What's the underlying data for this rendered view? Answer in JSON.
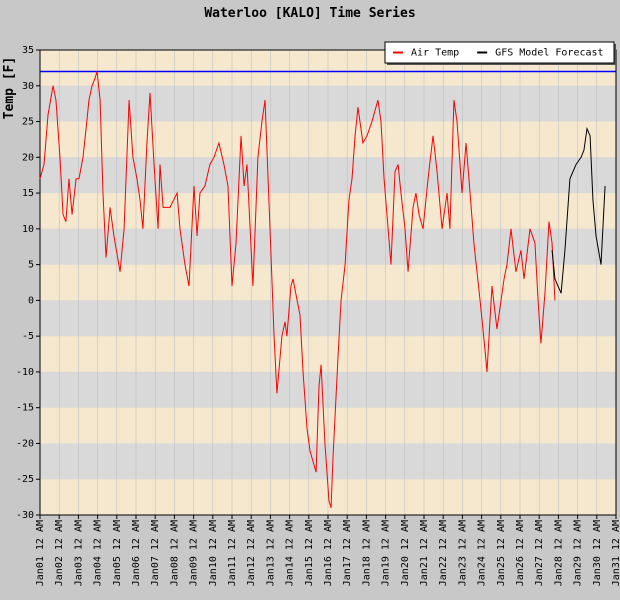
{
  "chart_data": {
    "type": "line",
    "title": "Waterloo [KALO] Time Series",
    "y_label": "Temp [F]",
    "xlim": [
      0,
      30
    ],
    "xticks": [
      {
        "value": 0,
        "label": "Jan01 12 AM"
      },
      {
        "value": 1,
        "label": "Jan02 12 AM"
      },
      {
        "value": 2,
        "label": "Jan03 12 AM"
      },
      {
        "value": 3,
        "label": "Jan04 12 AM"
      },
      {
        "value": 4,
        "label": "Jan05 12 AM"
      },
      {
        "value": 5,
        "label": "Jan06 12 AM"
      },
      {
        "value": 6,
        "label": "Jan07 12 AM"
      },
      {
        "value": 7,
        "label": "Jan08 12 AM"
      },
      {
        "value": 8,
        "label": "Jan09 12 AM"
      },
      {
        "value": 9,
        "label": "Jan10 12 AM"
      },
      {
        "value": 10,
        "label": "Jan11 12 AM"
      },
      {
        "value": 11,
        "label": "Jan12 12 AM"
      },
      {
        "value": 12,
        "label": "Jan13 12 AM"
      },
      {
        "value": 13,
        "label": "Jan14 12 AM"
      },
      {
        "value": 14,
        "label": "Jan15 12 AM"
      },
      {
        "value": 15,
        "label": "Jan16 12 AM"
      },
      {
        "value": 16,
        "label": "Jan17 12 AM"
      },
      {
        "value": 17,
        "label": "Jan18 12 AM"
      },
      {
        "value": 18,
        "label": "Jan19 12 AM"
      },
      {
        "value": 19,
        "label": "Jan20 12 AM"
      },
      {
        "value": 20,
        "label": "Jan21 12 AM"
      },
      {
        "value": 21,
        "label": "Jan22 12 AM"
      },
      {
        "value": 22,
        "label": "Jan23 12 AM"
      },
      {
        "value": 23,
        "label": "Jan24 12 AM"
      },
      {
        "value": 24,
        "label": "Jan25 12 AM"
      },
      {
        "value": 25,
        "label": "Jan26 12 AM"
      },
      {
        "value": 26,
        "label": "Jan27 12 AM"
      },
      {
        "value": 27,
        "label": "Jan28 12 AM"
      },
      {
        "value": 28,
        "label": "Jan29 12 AM"
      },
      {
        "value": 29,
        "label": "Jan30 12 AM"
      },
      {
        "value": 30,
        "label": "Jan31 12 AM"
      }
    ],
    "ylim": [
      -30,
      35
    ],
    "yticks": [
      35,
      30,
      25,
      20,
      15,
      10,
      5,
      0,
      -5,
      -10,
      -15,
      -20,
      -25,
      -30
    ],
    "band_colors": [
      "#f5e8cf",
      "#d9d9d9"
    ],
    "reference_line": {
      "value": 32,
      "color": "#0000ff"
    },
    "legend": "top-right",
    "series": [
      {
        "name": "Air Temp",
        "color": "#ff0000",
        "x": [
          0,
          0.21,
          0.42,
          0.68,
          0.83,
          1.04,
          1.2,
          1.35,
          1.51,
          1.67,
          1.88,
          2.03,
          2.24,
          2.4,
          2.55,
          2.71,
          2.86,
          2.97,
          3.13,
          3.28,
          3.44,
          3.65,
          3.85,
          4.17,
          4.38,
          4.64,
          4.84,
          5.05,
          5.21,
          5.36,
          5.57,
          5.73,
          5.94,
          6.15,
          6.25,
          6.41,
          6.77,
          7.14,
          7.29,
          7.55,
          7.76,
          8.02,
          8.18,
          8.33,
          8.59,
          8.85,
          9.06,
          9.32,
          9.58,
          9.79,
          10,
          10.21,
          10.47,
          10.63,
          10.78,
          11.09,
          11.35,
          11.56,
          11.72,
          11.98,
          12.19,
          12.34,
          12.6,
          12.76,
          12.86,
          13.07,
          13.18,
          13.39,
          13.54,
          13.7,
          13.91,
          14.06,
          14.27,
          14.38,
          14.53,
          14.64,
          14.84,
          15.05,
          15.16,
          15.26,
          15.52,
          15.68,
          15.89,
          16.09,
          16.25,
          16.41,
          16.56,
          16.82,
          17.03,
          17.29,
          17.6,
          17.76,
          17.92,
          18.13,
          18.28,
          18.49,
          18.65,
          18.8,
          19.01,
          19.17,
          19.43,
          19.58,
          19.74,
          19.95,
          20.21,
          20.47,
          20.68,
          20.94,
          21.2,
          21.35,
          21.56,
          21.72,
          21.98,
          22.19,
          22.4,
          22.6,
          22.92,
          23.18,
          23.28,
          23.54,
          23.8,
          24.17,
          24.32,
          24.53,
          24.79,
          25.05,
          25.21,
          25.52,
          25.78,
          25.94,
          26.09,
          26.3,
          26.51,
          26.67,
          26.82
        ],
        "values": [
          17,
          19,
          26,
          30,
          28,
          20,
          12,
          11,
          17,
          12,
          17,
          17,
          20,
          24,
          28,
          30,
          31,
          32,
          28,
          15,
          6,
          13,
          9,
          4,
          10,
          28,
          20,
          17,
          14,
          10,
          22,
          29,
          19,
          10,
          19,
          13,
          13,
          15,
          10,
          5,
          2,
          16,
          9,
          15,
          16,
          19,
          20,
          22,
          19,
          16,
          2,
          8,
          23,
          16,
          19,
          2,
          20,
          25,
          28,
          10,
          -5,
          -13,
          -5,
          -3,
          -5,
          2,
          3,
          0,
          -2,
          -10,
          -18,
          -21,
          -23,
          -24,
          -12,
          -9,
          -20,
          -28,
          -29,
          -22,
          -8,
          0,
          5,
          14,
          17,
          23,
          27,
          22,
          23,
          25,
          28,
          25,
          17,
          10,
          5,
          18,
          19,
          15,
          10,
          4,
          13,
          15,
          12,
          10,
          17,
          23,
          18,
          10,
          15,
          10,
          28,
          25,
          15,
          22,
          15,
          8,
          0,
          -7,
          -10,
          2,
          -4,
          3,
          5,
          10,
          4,
          7,
          3,
          10,
          8,
          0,
          -6,
          1,
          11,
          8,
          0
        ]
      },
      {
        "name": "GFS Model Forecast",
        "color": "#000000",
        "x": [
          26.67,
          26.82,
          26.98,
          27.14,
          27.34,
          27.6,
          27.92,
          28.18,
          28.33,
          28.49,
          28.65,
          28.8,
          28.96,
          29.22,
          29.43
        ],
        "values": [
          7,
          3,
          2,
          1,
          7,
          17,
          19,
          20,
          21,
          24,
          23,
          14,
          9,
          5,
          16
        ]
      }
    ]
  }
}
